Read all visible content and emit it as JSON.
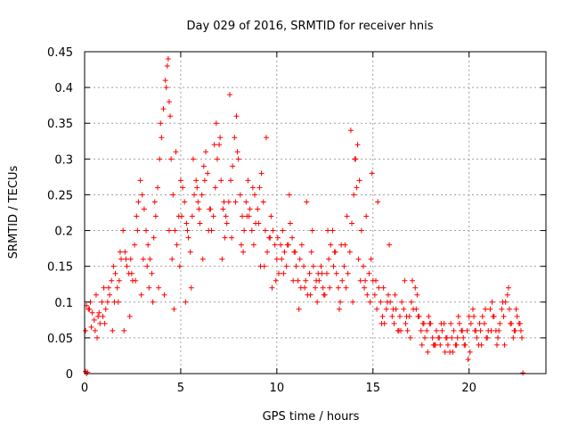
{
  "chart_data": {
    "type": "scatter",
    "title": "Day 029 of 2016, SRMTID for receiver hnis",
    "xlabel": "GPS time / hours",
    "ylabel": "SRMTID / TECUs",
    "xlim": [
      0,
      24
    ],
    "ylim": [
      0,
      0.45
    ],
    "x_ticks": [
      0,
      5,
      10,
      15,
      20
    ],
    "x_tick_labels": [
      "0",
      "5",
      "10",
      "15",
      "20"
    ],
    "y_ticks": [
      0,
      0.05,
      0.1,
      0.15,
      0.2,
      0.25,
      0.3,
      0.35,
      0.4,
      0.45
    ],
    "y_tick_labels": [
      "0",
      "0.05",
      "0.1",
      "0.15",
      "0.2",
      "0.25",
      "0.3",
      "0.35",
      "0.4",
      "0.45"
    ],
    "grid": true,
    "marker": "plus",
    "color": "#ff0000",
    "series": [
      {
        "name": "SRMTID",
        "x": [
          0.05,
          0.1,
          0.15,
          0.2,
          0.3,
          0.4,
          0.5,
          0.6,
          0.7,
          0.8,
          0.9,
          1.0,
          1.1,
          1.2,
          1.3,
          1.4,
          1.5,
          1.6,
          1.7,
          1.8,
          1.9,
          2.0,
          2.1,
          2.2,
          2.3,
          2.4,
          2.5,
          2.6,
          2.7,
          2.8,
          2.9,
          3.0,
          3.1,
          3.2,
          3.3,
          3.4,
          3.5,
          3.6,
          3.7,
          3.8,
          3.9,
          4.0,
          4.1,
          4.2,
          4.3,
          4.4,
          4.5,
          4.6,
          4.7,
          4.8,
          4.9,
          5.0,
          5.1,
          5.2,
          5.3,
          5.4,
          5.5,
          5.6,
          5.7,
          5.8,
          5.9,
          6.0,
          6.1,
          6.2,
          6.3,
          6.4,
          6.5,
          6.6,
          6.7,
          6.8,
          6.9,
          7.0,
          7.1,
          7.2,
          7.3,
          7.4,
          7.5,
          7.6,
          7.7,
          7.8,
          7.9,
          8.0,
          8.1,
          8.2,
          8.3,
          8.4,
          8.5,
          8.6,
          8.7,
          8.8,
          8.9,
          9.0,
          9.1,
          9.2,
          9.3,
          9.4,
          9.5,
          9.6,
          9.7,
          9.8,
          9.9,
          10.0,
          10.1,
          10.2,
          10.3,
          10.4,
          10.5,
          10.6,
          10.7,
          10.8,
          10.9,
          11.0,
          11.1,
          11.2,
          11.3,
          11.4,
          11.5,
          11.6,
          11.7,
          11.8,
          11.9,
          12.0,
          12.1,
          12.2,
          12.3,
          12.4,
          12.5,
          12.6,
          12.7,
          12.8,
          12.9,
          13.0,
          13.1,
          13.2,
          13.3,
          13.4,
          13.5,
          13.6,
          13.7,
          13.8,
          13.9,
          14.0,
          14.1,
          14.2,
          14.3,
          14.4,
          14.5,
          14.6,
          14.7,
          14.8,
          14.9,
          15.0,
          15.1,
          15.2,
          15.3,
          15.4,
          15.5,
          15.6,
          15.7,
          15.8,
          15.9,
          16.0,
          16.1,
          16.2,
          16.3,
          16.4,
          16.5,
          16.6,
          16.7,
          16.8,
          16.9,
          17.0,
          17.1,
          17.2,
          17.3,
          17.4,
          17.5,
          17.6,
          17.7,
          17.8,
          17.9,
          18.0,
          18.1,
          18.2,
          18.3,
          18.4,
          18.5,
          18.6,
          18.7,
          18.8,
          18.9,
          19.0,
          19.1,
          19.2,
          19.3,
          19.4,
          19.5,
          19.6,
          19.7,
          19.8,
          19.9,
          20.0,
          20.1,
          20.2,
          20.3,
          20.4,
          20.5,
          20.6,
          20.7,
          20.8,
          20.9,
          21.0,
          21.1,
          21.2,
          21.3,
          21.4,
          21.5,
          21.6,
          21.7,
          21.8,
          21.9,
          22.0,
          22.1,
          22.2,
          22.3,
          22.4,
          22.5,
          22.6,
          22.7,
          22.8,
          0.05,
          0.1,
          0.35,
          0.55,
          0.75,
          0.95,
          1.25,
          1.55,
          1.85,
          2.15,
          2.45,
          2.75,
          3.05,
          3.35,
          3.65,
          3.95,
          4.25,
          4.35,
          4.45,
          4.55,
          4.75,
          5.05,
          5.35,
          5.65,
          5.95,
          6.25,
          6.55,
          6.85,
          7.05,
          7.15,
          7.35,
          7.55,
          7.85,
          8.15,
          8.45,
          8.75,
          9.05,
          9.35,
          9.65,
          9.95,
          10.25,
          10.55,
          10.85,
          11.15,
          11.45,
          11.75,
          12.05,
          12.35,
          12.65,
          12.95,
          13.25,
          13.55,
          13.85,
          14.05,
          14.15,
          14.25,
          14.55,
          14.85,
          15.15,
          15.45,
          15.75,
          16.05,
          16.35,
          16.65,
          16.95,
          17.25,
          17.55,
          17.85,
          18.15,
          18.45,
          18.75,
          19.05,
          19.35,
          19.65,
          19.95,
          20.25,
          20.55,
          20.85,
          21.15,
          21.45,
          21.75,
          22.05,
          22.35,
          22.65,
          0.25,
          0.65,
          1.05,
          1.45,
          1.75,
          2.05,
          2.35,
          2.65,
          2.95,
          3.25,
          3.55,
          3.85,
          4.15,
          4.4,
          4.65,
          4.95,
          5.25,
          5.55,
          5.85,
          6.15,
          6.45,
          6.75,
          7.25,
          7.65,
          7.95,
          8.25,
          8.55,
          8.85,
          9.15,
          9.45,
          9.75,
          10.05,
          10.35,
          10.65,
          10.95,
          11.25,
          11.55,
          11.85,
          12.15,
          12.45,
          12.75,
          13.05,
          13.35,
          13.65,
          13.95,
          14.35,
          14.65,
          14.95,
          15.25,
          15.55,
          15.85,
          16.15,
          16.45,
          16.75,
          17.05,
          17.35,
          17.65,
          17.95,
          18.25,
          18.55,
          18.85,
          19.15,
          19.45,
          19.75,
          20.05,
          20.35,
          20.65,
          20.95,
          21.25,
          21.55,
          21.85,
          22.15,
          22.45,
          22.75
        ],
        "y": [
          0.06,
          0.0,
          0.002,
          0.09,
          0.1,
          0.085,
          0.075,
          0.11,
          0.08,
          0.07,
          0.1,
          0.12,
          0.09,
          0.1,
          0.11,
          0.13,
          0.15,
          0.14,
          0.12,
          0.13,
          0.16,
          0.2,
          0.17,
          0.15,
          0.14,
          0.16,
          0.13,
          0.18,
          0.22,
          0.24,
          0.27,
          0.25,
          0.23,
          0.2,
          0.18,
          0.16,
          0.14,
          0.19,
          0.22,
          0.26,
          0.3,
          0.33,
          0.37,
          0.41,
          0.43,
          0.38,
          0.3,
          0.25,
          0.2,
          0.18,
          0.22,
          0.27,
          0.26,
          0.24,
          0.21,
          0.19,
          0.17,
          0.22,
          0.25,
          0.27,
          0.24,
          0.21,
          0.25,
          0.29,
          0.31,
          0.28,
          0.23,
          0.2,
          0.22,
          0.26,
          0.3,
          0.32,
          0.27,
          0.23,
          0.19,
          0.21,
          0.24,
          0.27,
          0.29,
          0.33,
          0.36,
          0.3,
          0.25,
          0.22,
          0.2,
          0.24,
          0.27,
          0.23,
          0.2,
          0.18,
          0.21,
          0.23,
          0.26,
          0.28,
          0.24,
          0.2,
          0.17,
          0.19,
          0.22,
          0.2,
          0.18,
          0.16,
          0.14,
          0.18,
          0.2,
          0.17,
          0.15,
          0.18,
          0.21,
          0.19,
          0.17,
          0.15,
          0.13,
          0.16,
          0.18,
          0.15,
          0.13,
          0.11,
          0.14,
          0.17,
          0.15,
          0.12,
          0.1,
          0.13,
          0.15,
          0.12,
          0.11,
          0.14,
          0.16,
          0.18,
          0.2,
          0.17,
          0.14,
          0.12,
          0.1,
          0.13,
          0.15,
          0.12,
          0.14,
          0.17,
          0.21,
          0.25,
          0.3,
          0.32,
          0.27,
          0.2,
          0.15,
          0.13,
          0.11,
          0.14,
          0.16,
          0.13,
          0.11,
          0.09,
          0.12,
          0.1,
          0.08,
          0.07,
          0.09,
          0.11,
          0.1,
          0.08,
          0.07,
          0.09,
          0.06,
          0.08,
          0.1,
          0.09,
          0.07,
          0.06,
          0.08,
          0.1,
          0.09,
          0.12,
          0.11,
          0.08,
          0.06,
          0.07,
          0.05,
          0.06,
          0.08,
          0.07,
          0.05,
          0.04,
          0.06,
          0.05,
          0.04,
          0.06,
          0.07,
          0.05,
          0.04,
          0.03,
          0.05,
          0.06,
          0.04,
          0.05,
          0.07,
          0.06,
          0.05,
          0.04,
          0.06,
          0.08,
          0.07,
          0.09,
          0.06,
          0.05,
          0.04,
          0.06,
          0.08,
          0.07,
          0.05,
          0.06,
          0.09,
          0.1,
          0.08,
          0.06,
          0.05,
          0.07,
          0.09,
          0.08,
          0.1,
          0.11,
          0.09,
          0.07,
          0.05,
          0.06,
          0.08,
          0.07,
          0.06,
          0.001,
          0.003,
          0.095,
          0.065,
          0.06,
          0.085,
          0.08,
          0.12,
          0.1,
          0.17,
          0.16,
          0.14,
          0.2,
          0.16,
          0.12,
          0.24,
          0.35,
          0.4,
          0.44,
          0.36,
          0.16,
          0.31,
          0.22,
          0.2,
          0.3,
          0.23,
          0.27,
          0.23,
          0.35,
          0.33,
          0.16,
          0.22,
          0.39,
          0.24,
          0.18,
          0.22,
          0.26,
          0.21,
          0.15,
          0.19,
          0.13,
          0.16,
          0.18,
          0.13,
          0.09,
          0.12,
          0.11,
          0.13,
          0.14,
          0.2,
          0.15,
          0.09,
          0.18,
          0.34,
          0.3,
          0.26,
          0.16,
          0.12,
          0.1,
          0.13,
          0.07,
          0.1,
          0.09,
          0.06,
          0.13,
          0.05,
          0.09,
          0.04,
          0.03,
          0.04,
          0.05,
          0.03,
          0.07,
          0.04,
          0.06,
          0.02,
          0.08,
          0.07,
          0.09,
          0.06,
          0.04,
          0.1,
          0.12,
          0.06,
          0.07,
          0.09,
          0.05,
          0.07,
          0.06,
          0.1,
          0.06,
          0.08,
          0.13,
          0.11,
          0.15,
          0.1,
          0.12,
          0.11,
          0.2,
          0.09,
          0.15,
          0.1,
          0.12,
          0.26,
          0.16,
          0.2,
          0.32,
          0.24,
          0.19,
          0.31,
          0.17,
          0.22,
          0.25,
          0.15,
          0.33,
          0.12,
          0.19,
          0.14,
          0.25,
          0.17,
          0.12,
          0.24,
          0.2,
          0.14,
          0.11,
          0.12,
          0.17,
          0.18,
          0.22,
          0.1,
          0.13,
          0.22,
          0.28,
          0.24,
          0.12,
          0.18,
          0.11,
          0.06,
          0.08,
          0.13,
          0.08,
          0.07,
          0.07,
          0.04,
          0.07,
          0.05,
          0.03,
          0.08,
          0.04,
          0.03,
          0.06,
          0.04,
          0.05,
          0.08,
          0.06,
          0.04,
          0.07,
          0.09,
          0.05
        ]
      }
    ]
  }
}
